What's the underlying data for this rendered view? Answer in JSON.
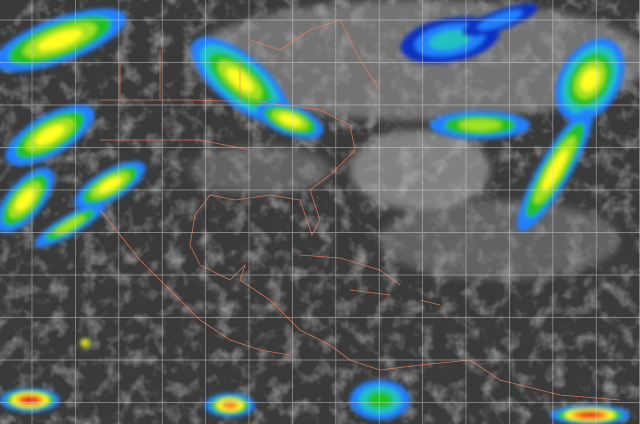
{
  "image": {
    "kind": "infrared satellite imagery",
    "colors": {
      "background": "#3a3a3a",
      "cloud_gray": "#a8a8a8",
      "grid": "#d8d8d8",
      "borders": "#e8805a",
      "scale": [
        "#1030c0",
        "#2080ff",
        "#20c0c0",
        "#20c020",
        "#a0e020",
        "#ffff20",
        "#ff8020",
        "#e02020"
      ]
    }
  }
}
